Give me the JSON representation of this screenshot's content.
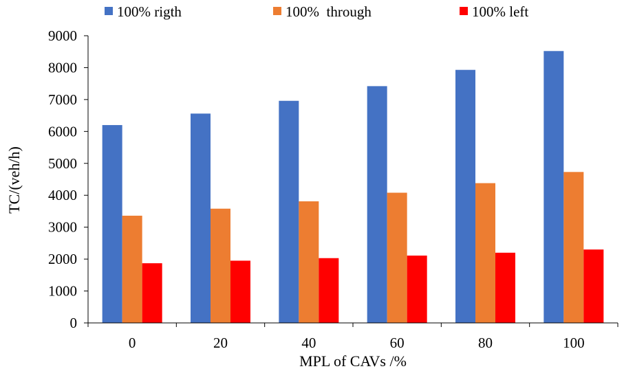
{
  "chart_data": {
    "type": "bar",
    "title": "",
    "xlabel": "MPL of CAVs /%",
    "ylabel": "TC/(veh/h)",
    "categories": [
      "0",
      "20",
      "40",
      "60",
      "80",
      "100"
    ],
    "ylim": [
      0,
      9000
    ],
    "yticks": [
      "0",
      "1000",
      "2000",
      "3000",
      "4000",
      "5000",
      "6000",
      "7000",
      "8000",
      "9000"
    ],
    "grid": false,
    "legend_position": "top",
    "series": [
      {
        "name": "100% rigth",
        "color": "#4472C4",
        "values": [
          6200,
          6560,
          6960,
          7420,
          7930,
          8520
        ]
      },
      {
        "name": "100%  through",
        "color": "#ED7D31",
        "values": [
          3360,
          3580,
          3810,
          4080,
          4380,
          4730
        ]
      },
      {
        "name": "100% left",
        "color": "#FF0000",
        "values": [
          1870,
          1950,
          2030,
          2110,
          2200,
          2300
        ]
      }
    ]
  }
}
